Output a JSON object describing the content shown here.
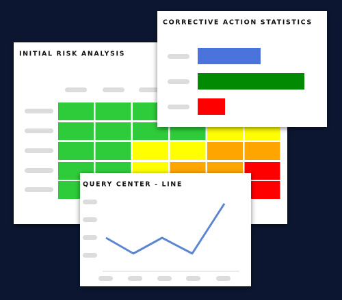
{
  "cards": {
    "risk": {
      "title": "INITIAL RISK ANALYSIS"
    },
    "corrective": {
      "title": "CORRECTIVE ACTION STATISTICS"
    },
    "query": {
      "title": "QUERY CENTER - LINE"
    }
  }
}
